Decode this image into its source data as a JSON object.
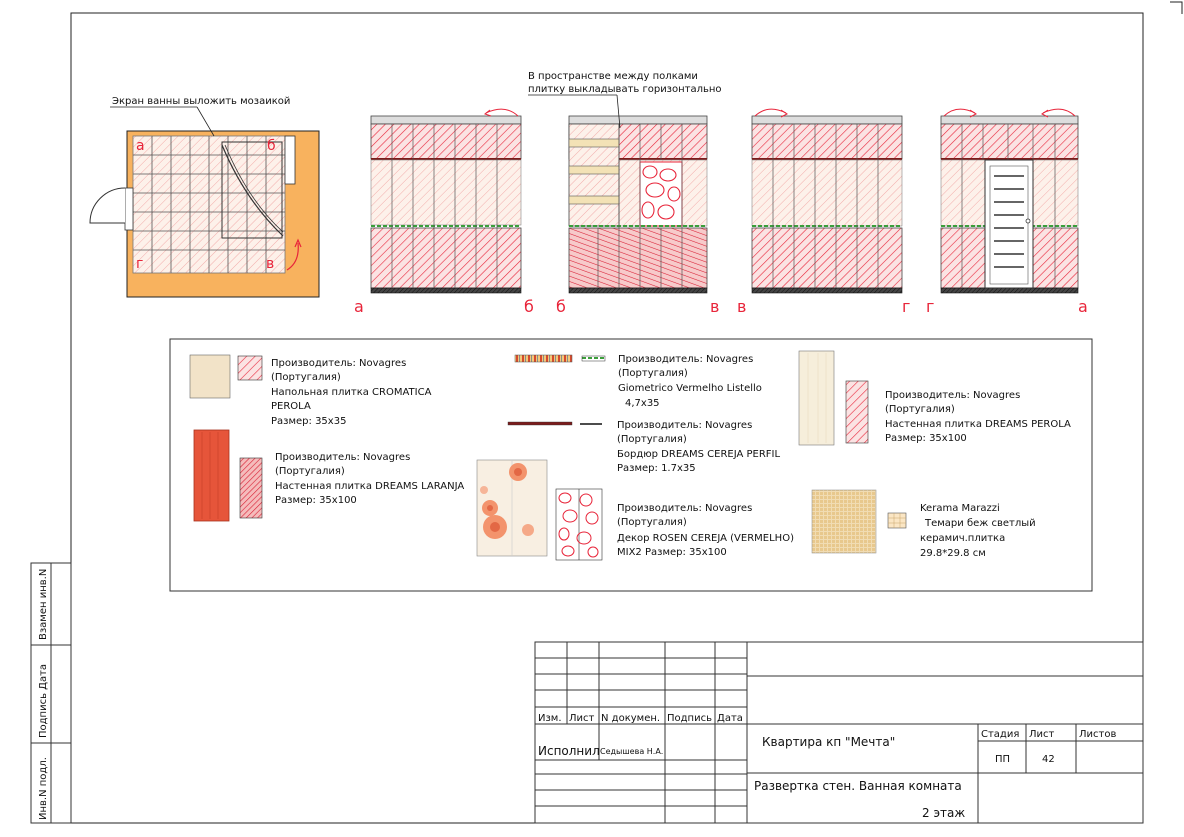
{
  "notes": {
    "bath_screen": "Экран ванны выложить мозаикой",
    "shelves_line1": "В пространстве между полками",
    "shelves_line2": "плитку выкладывать горизонтально"
  },
  "plan_letters": [
    "а",
    "б",
    "г",
    "в"
  ],
  "elevation_letters": [
    "а",
    "б",
    "б",
    "в",
    "в",
    "г",
    "г",
    "а"
  ],
  "legend": {
    "cromatica": {
      "line1": "Производитель: Novagres",
      "line2": "(Португалия)",
      "line3": "Напольная плитка CROMATICA",
      "line4": "PEROLA",
      "line5": "Размер: 35x35"
    },
    "laranja": {
      "line1": "Производитель: Novagres",
      "line2": "(Португалия)",
      "line3": "Настенная плитка DREAMS LARANJA",
      "line4": "Размер: 35x100"
    },
    "listello": {
      "line1": "Производитель: Novagres",
      "line2": "(Португалия)",
      "line3": "Giometrico Vermelho Listello",
      "line4": "4,7x35"
    },
    "perfil": {
      "line1": "Производитель: Novagres",
      "line2": "(Португалия)",
      "line3": "Бордюр DREAMS CEREJA PERFIL",
      "line4": "Размер: 1.7x35"
    },
    "rosen": {
      "line1": "Производитель: Novagres",
      "line2": "(Португалия)",
      "line3": "Декор ROSEN CEREJA (VERMELHO)",
      "line4": "MIX2   Размер: 35x100"
    },
    "perola": {
      "line1": "Производитель: Novagres",
      "line2": "(Португалия)",
      "line3": "Настенная плитка DREAMS PEROLA",
      "line4": "Размер: 35x100"
    },
    "kerama": {
      "line1": "Kerama Marazzi",
      "line2": "Темари беж светлый",
      "line3": "керамич.плитка",
      "line4": "29.8*29.8 см"
    }
  },
  "side_stamp": {
    "inv_podl": "Инв.N подл.",
    "podpis_data": "Подпись  Дата",
    "vzamen": "Взамен  инв.N"
  },
  "title_block": {
    "izm": "Изм.",
    "list": "Лист",
    "n_dokum": "N  докумен.",
    "podpis": "Подпись",
    "data": "Дата",
    "ispolnil": "Исполнил",
    "author": "Седышева Н.А.",
    "project": "Квартира кп \"Мечта\"",
    "sheet_title": "Развертка стен. Ванная комната",
    "floor": "2 этаж",
    "stage_label": "Стадия",
    "list_label": "Лист",
    "listov_label": "Листов",
    "stage": "ПП",
    "sheet_no": "42",
    "sheets_total": ""
  },
  "colors": {
    "floor_orange": "#f8b25e",
    "hatch_red": "#e8253a",
    "light_fill": "#fdecdc",
    "dark_band_fill": "#f6c7c7",
    "laranja_tile": "#e6553a",
    "perola_tile": "#f6eedb",
    "mosaic": "#ecd3a6"
  }
}
